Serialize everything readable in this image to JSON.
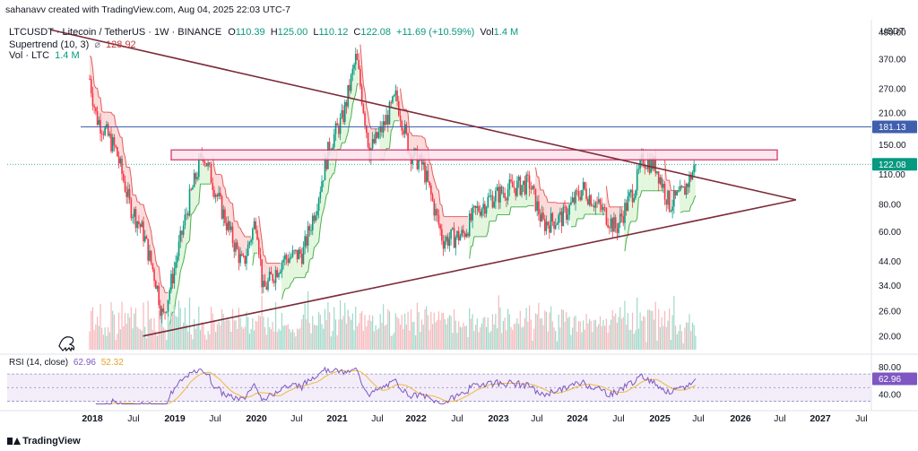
{
  "attribution": "sahanavv created with TradingView.com, Aug 04, 2025 22:03 UTC-7",
  "header": {
    "symbol": "LTCUSDT · Litecoin / TetherUS · 1W · BINANCE",
    "o_label": "O",
    "o_value": "110.39",
    "h_label": "H",
    "h_value": "125.00",
    "l_label": "L",
    "l_value": "110.12",
    "c_label": "C",
    "c_value": "122.08",
    "change": "+11.69 (+10.59%)",
    "vol_label": "Vol",
    "vol_value": "1.4 M",
    "supertrend_label": "Supertrend (10, 3)",
    "supertrend_value": "128.92",
    "vol_ltc_label": "Vol · LTC",
    "vol_ltc_value": "1.4 M"
  },
  "rsi_header": {
    "label": "RSI (14, close)",
    "rsi_value": "62.96",
    "ma_value": "52.32"
  },
  "currency": "USDT",
  "footer_logo": "TradingView",
  "colors": {
    "up": "#089981",
    "down": "#f23645",
    "trendline": "#7b2c3a",
    "resistance_line": "#3f5fae",
    "zone_border": "#d6336c",
    "zone_fill": "#fde3ec",
    "st_bull_fill": "#dff5d8",
    "st_bear_fill": "#fbd5d5",
    "rsi_line": "#7e57c2",
    "rsi_ma": "#f0b93a",
    "price_tag": "#089981",
    "level_tag": "#3f5fae"
  },
  "chart_data": {
    "type": "candlestick",
    "y_scale": "log",
    "ylim": [
      17,
      560
    ],
    "y_ticks": [
      "490.00",
      "370.00",
      "270.00",
      "210.00",
      "150.00",
      "110.00",
      "80.00",
      "60.00",
      "44.00",
      "34.00",
      "26.00",
      "20.00"
    ],
    "x_ticks": [
      "2018",
      "Jul",
      "2019",
      "Jul",
      "2020",
      "Jul",
      "2021",
      "Jul",
      "2022",
      "Jul",
      "2023",
      "Jul",
      "2024",
      "Jul",
      "2025",
      "Jul",
      "2026",
      "Jul",
      "2027",
      "Jul"
    ],
    "price_path": [
      [
        "2018-01",
        300
      ],
      [
        "2018-02",
        200
      ],
      [
        "2018-03",
        180
      ],
      [
        "2018-05",
        140
      ],
      [
        "2018-07",
        80
      ],
      [
        "2018-09",
        60
      ],
      [
        "2018-11",
        35
      ],
      [
        "2018-12",
        24
      ],
      [
        "2019-02",
        45
      ],
      [
        "2019-04",
        85
      ],
      [
        "2019-06",
        140
      ],
      [
        "2019-08",
        90
      ],
      [
        "2019-10",
        60
      ],
      [
        "2019-12",
        42
      ],
      [
        "2020-02",
        70
      ],
      [
        "2020-03",
        32
      ],
      [
        "2020-06",
        45
      ],
      [
        "2020-09",
        48
      ],
      [
        "2020-11",
        80
      ],
      [
        "2021-01",
        150
      ],
      [
        "2021-03",
        200
      ],
      [
        "2021-05",
        380
      ],
      [
        "2021-07",
        140
      ],
      [
        "2021-09",
        180
      ],
      [
        "2021-11",
        250
      ],
      [
        "2022-01",
        140
      ],
      [
        "2022-03",
        120
      ],
      [
        "2022-06",
        55
      ],
      [
        "2022-09",
        58
      ],
      [
        "2022-11",
        75
      ],
      [
        "2023-01",
        85
      ],
      [
        "2023-04",
        95
      ],
      [
        "2023-07",
        100
      ],
      [
        "2023-09",
        65
      ],
      [
        "2023-12",
        70
      ],
      [
        "2024-03",
        95
      ],
      [
        "2024-06",
        75
      ],
      [
        "2024-08",
        62
      ],
      [
        "2024-11",
        100
      ],
      [
        "2024-12",
        130
      ],
      [
        "2025-02",
        120
      ],
      [
        "2025-04",
        80
      ],
      [
        "2025-06",
        90
      ],
      [
        "2025-08",
        122
      ]
    ],
    "last_price": "122.08",
    "resistance_level": "181.13",
    "resistance_zone": [
      128,
      142
    ],
    "triangle": {
      "upper": [
        [
          "2019-10",
          490
        ],
        [
          "2026-11",
          84
        ]
      ],
      "lower": [
        [
          "2018-09",
          20
        ],
        [
          "2026-11",
          84
        ]
      ]
    },
    "rsi": {
      "levels": [
        70,
        50,
        30
      ],
      "y_ticks": [
        "80.00",
        "40.00"
      ],
      "current": 62.96,
      "ma": 52.32
    }
  }
}
